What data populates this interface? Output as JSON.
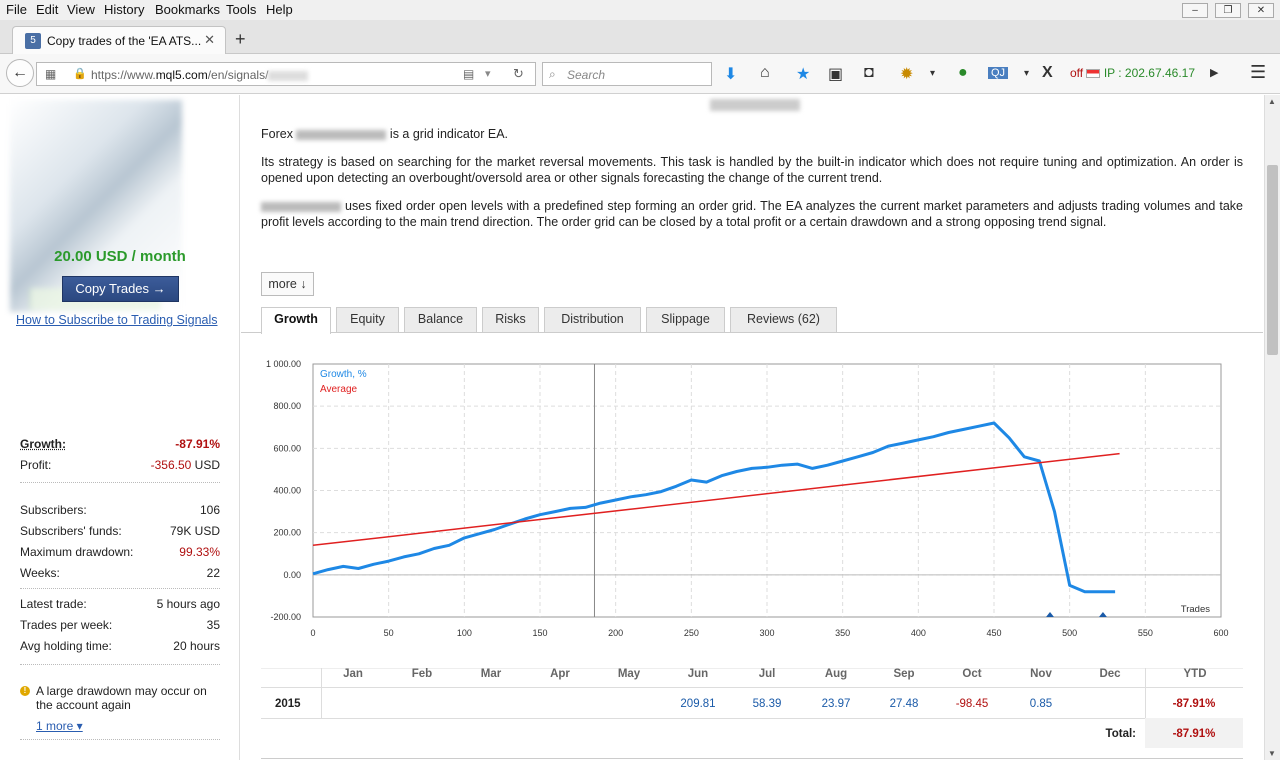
{
  "browser": {
    "menu": [
      "File",
      "Edit",
      "View",
      "History",
      "Bookmarks",
      "Tools",
      "Help"
    ],
    "tab_title": "Copy trades of the 'EA ATS...",
    "tab_favicon": "5",
    "url_prefix": "https://www.",
    "url_domain": "mql5.com",
    "url_path": "/en/signals/",
    "search_placeholder": "Search",
    "addon_qj": "QJ",
    "addon_x": "X",
    "proxy_status": "off",
    "ip_label": "IP : 202.67.46.17"
  },
  "sidebar": {
    "price": "20.00 USD / month",
    "copy_button": "Copy Trades →",
    "how_link": "How to Subscribe to Trading Signals",
    "growth_label": "Growth:",
    "growth_value": "-87.91%",
    "profit_label": "Profit:",
    "profit_value": "-356.50",
    "profit_unit": "USD",
    "subscribers_label": "Subscribers:",
    "subscribers_value": "106",
    "funds_label": "Subscribers' funds:",
    "funds_value": "79K USD",
    "drawdown_label": "Maximum drawdown:",
    "drawdown_value": "99.33%",
    "weeks_label": "Weeks:",
    "weeks_value": "22",
    "latest_label": "Latest trade:",
    "latest_value": "5 hours ago",
    "tpw_label": "Trades per week:",
    "tpw_value": "35",
    "hold_label": "Avg holding time:",
    "hold_value": "20 hours",
    "warning": "A large drawdown may occur on the account again",
    "more_warnings": "1 more ▾"
  },
  "description": {
    "p1_prefix": "Forex",
    "p1_suffix": "is a grid indicator EA.",
    "p2": "Its strategy is based on searching for the market reversal movements. This task is handled by the built-in indicator which does not require tuning and optimization. An order is opened upon detecting an overbought/oversold area or other signals forecasting the change of the current trend.",
    "p3_suffix": "uses fixed order open levels with a predefined step forming an order grid. The EA analyzes the current market parameters and adjusts trading volumes and take profit levels according to the main trend direction. The order grid can be closed by a total profit or a certain drawdown and a strong opposing trend signal.",
    "more_button": "more ↓"
  },
  "tabs": [
    "Growth",
    "Equity",
    "Balance",
    "Risks",
    "Distribution",
    "Slippage",
    "Reviews (62)"
  ],
  "chart_data": {
    "type": "line",
    "xlabel": "Trades",
    "ylabel": "",
    "xlim": [
      0,
      600
    ],
    "ylim": [
      -200,
      1000
    ],
    "x_ticks": [
      "0",
      "50",
      "100",
      "150",
      "200",
      "250",
      "300",
      "350",
      "400",
      "450",
      "500",
      "550",
      "600"
    ],
    "y_ticks": [
      "1 000.00",
      "800.00",
      "600.00",
      "400.00",
      "200.00",
      "0.00",
      "-200.00"
    ],
    "grid": true,
    "legend_position": "top-left",
    "series": [
      {
        "name": "Growth, %",
        "color": "#1e88e5",
        "x": [
          0,
          10,
          20,
          30,
          40,
          50,
          60,
          70,
          80,
          90,
          100,
          110,
          120,
          130,
          140,
          150,
          160,
          170,
          180,
          190,
          200,
          210,
          220,
          230,
          240,
          250,
          260,
          270,
          280,
          290,
          300,
          310,
          320,
          330,
          340,
          350,
          360,
          370,
          380,
          390,
          400,
          410,
          420,
          430,
          440,
          450,
          460,
          470,
          480,
          490,
          500,
          510,
          520,
          530
        ],
        "y": [
          5,
          25,
          40,
          30,
          50,
          65,
          85,
          100,
          125,
          140,
          175,
          195,
          215,
          240,
          265,
          285,
          300,
          315,
          320,
          340,
          355,
          370,
          380,
          395,
          420,
          450,
          440,
          470,
          490,
          505,
          510,
          520,
          525,
          505,
          520,
          540,
          560,
          580,
          610,
          625,
          640,
          655,
          675,
          690,
          705,
          720,
          650,
          560,
          540,
          300,
          -50,
          -80,
          -80,
          -80
        ]
      },
      {
        "name": "Average",
        "color": "#e02020",
        "x": [
          0,
          533
        ],
        "y": [
          140,
          575
        ]
      }
    ],
    "vertical_marker_x": 186,
    "deal_markers_x": [
      487,
      522
    ]
  },
  "monthly": {
    "months": [
      "Jan",
      "Feb",
      "Mar",
      "Apr",
      "May",
      "Jun",
      "Jul",
      "Aug",
      "Sep",
      "Oct",
      "Nov",
      "Dec"
    ],
    "ytd_label": "YTD",
    "year": "2015",
    "values": [
      "",
      "",
      "",
      "",
      "",
      "209.81",
      "58.39",
      "23.97",
      "27.48",
      "-98.45",
      "0.85",
      ""
    ],
    "ytd_value": "-87.91%",
    "total_label": "Total:",
    "total_value": "-87.91%"
  }
}
